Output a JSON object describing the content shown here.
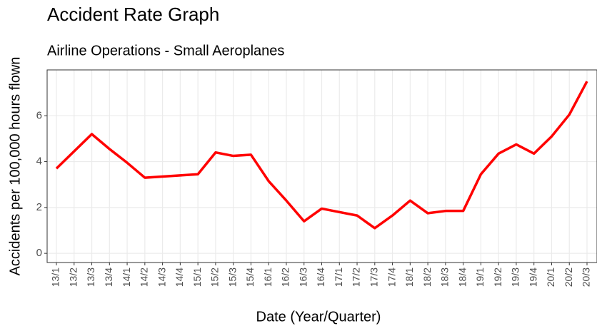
{
  "chart_data": {
    "type": "line",
    "title": "Accident Rate Graph",
    "subtitle": "Airline Operations - Small Aeroplanes",
    "x_label": "Date (Year/Quarter)",
    "y_label": "Accidents per 100,000 hours flown",
    "categories": [
      "13/1",
      "13/2",
      "13/3",
      "13/4",
      "14/1",
      "14/2",
      "14/3",
      "14/4",
      "15/1",
      "15/2",
      "15/3",
      "15/4",
      "16/1",
      "16/2",
      "16/3",
      "16/4",
      "17/1",
      "17/2",
      "17/3",
      "17/4",
      "18/1",
      "18/2",
      "18/3",
      "18/4",
      "19/1",
      "19/2",
      "19/3",
      "19/4",
      "20/1",
      "20/2",
      "20/3"
    ],
    "values": [
      3.7,
      4.45,
      5.2,
      4.55,
      3.95,
      3.3,
      3.35,
      3.4,
      3.45,
      4.4,
      4.25,
      4.3,
      3.15,
      2.3,
      1.4,
      1.95,
      1.8,
      1.65,
      1.1,
      1.65,
      2.3,
      1.75,
      1.85,
      1.85,
      3.45,
      4.35,
      4.75,
      4.35,
      5.1,
      6.05,
      7.5
    ],
    "color": "#ff0000",
    "ylim": [
      -0.4,
      8.0
    ],
    "yticks": [
      0,
      2,
      4,
      6
    ],
    "grid": true
  }
}
